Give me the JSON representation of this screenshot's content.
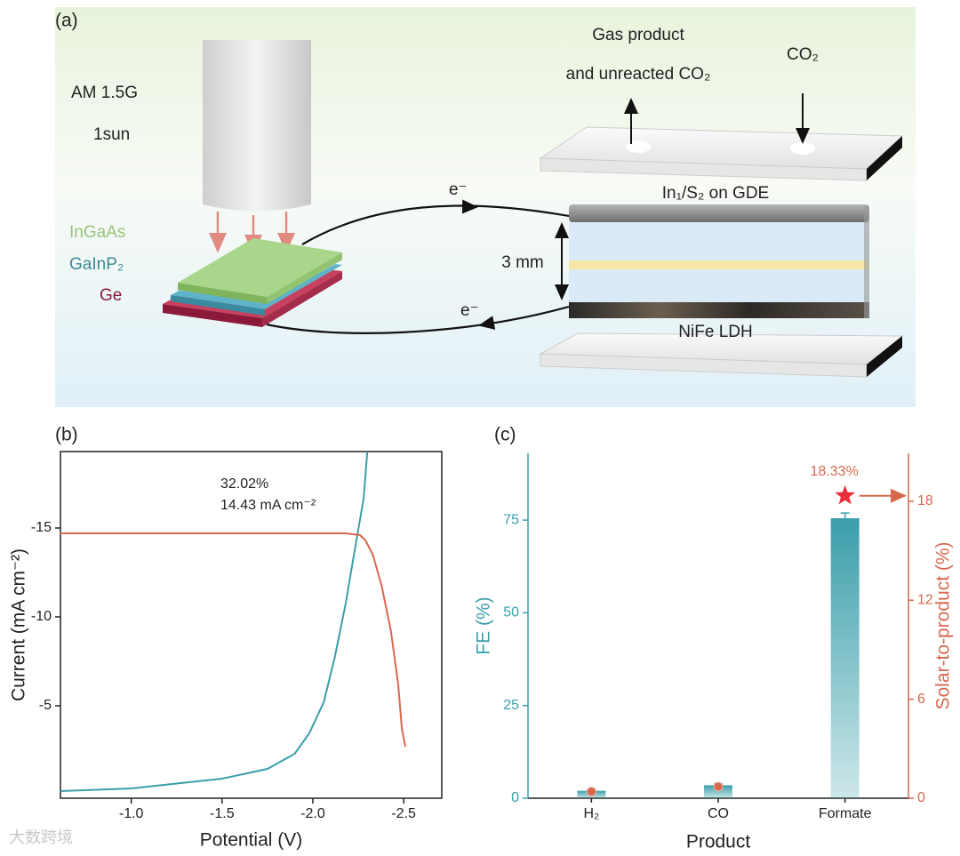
{
  "panels": {
    "a": "(a)",
    "b": "(b)",
    "c": "(c)"
  },
  "diagram": {
    "labels": {
      "am": "AM 1.5G",
      "sun": "1sun",
      "ingaas": "InGaAs",
      "gainp": "GaInP₂",
      "ge": "Ge",
      "gas1": "Gas product",
      "gas2": "and unreacted CO₂",
      "co2": "CO₂",
      "e_top": "e⁻",
      "e_bottom": "e⁻",
      "gde": "In₁/S₂ on GDE",
      "gap": "3 mm",
      "ldh": "NiFe LDH"
    }
  },
  "chart_data": [
    {
      "type": "line",
      "xlabel": "Potential (V)",
      "ylabel": "Current (mA cm⁻²)",
      "xlim": [
        -0.61,
        -2.71
      ],
      "xticks": [
        {
          "value": -1,
          "label": "-1.0"
        },
        -1.5,
        {
          "value": -2,
          "label": "-2.0"
        },
        -2.5
      ],
      "ylim": [
        0.2,
        -19.3
      ],
      "yticks": [
        -5,
        -10,
        -15
      ],
      "annotations": [
        "32.02%",
        "14.43 mA cm⁻²"
      ],
      "series": [
        {
          "color": "#3a9eaa",
          "x": [
            -0.61,
            -1.0,
            -1.5,
            -1.75,
            -1.9,
            -1.98,
            -2.06,
            -2.12,
            -2.18,
            -2.23,
            -2.28,
            -2.3
          ],
          "values": [
            -0.2,
            -0.35,
            -0.9,
            -1.45,
            -2.3,
            -3.45,
            -5.2,
            -7.7,
            -10.7,
            -13.7,
            -16.7,
            -19.3
          ]
        },
        {
          "color": "#d6684e",
          "x": [
            -0.61,
            -1.0,
            -1.5,
            -2.0,
            -2.18,
            -2.26,
            -2.29,
            -2.33,
            -2.38,
            -2.43,
            -2.47,
            -2.49,
            -2.51
          ],
          "values": [
            -14.7,
            -14.7,
            -14.7,
            -14.7,
            -14.7,
            -14.6,
            -14.3,
            -13.5,
            -11.7,
            -9.2,
            -6.2,
            -3.7,
            -2.7
          ]
        }
      ]
    },
    {
      "type": "bar",
      "xlabel": "Product",
      "ylabel": "FE (%)",
      "y2label": "Solar-to-product (%)",
      "categories": [
        "H₂",
        "CO",
        "Formate"
      ],
      "ylim": [
        0,
        93
      ],
      "yticks": [
        0,
        25,
        50,
        75
      ],
      "y2lim": [
        0,
        20.9
      ],
      "y2ticks": [
        0,
        6,
        12,
        18
      ],
      "series": [
        {
          "type": "bar",
          "color": "#3a9eaa",
          "values": [
            2,
            3.5,
            75.5
          ],
          "errors": [
            0.4,
            0.4,
            1.4
          ]
        },
        {
          "type": "scatter",
          "axis": "y2",
          "color": "#d6684e",
          "values": [
            0.4,
            0.7,
            18.33
          ],
          "markers": [
            "circle",
            "circle",
            "star"
          ],
          "value_labels": [
            null,
            null,
            "18.33%"
          ]
        }
      ]
    }
  ],
  "watermark": "大数跨境"
}
